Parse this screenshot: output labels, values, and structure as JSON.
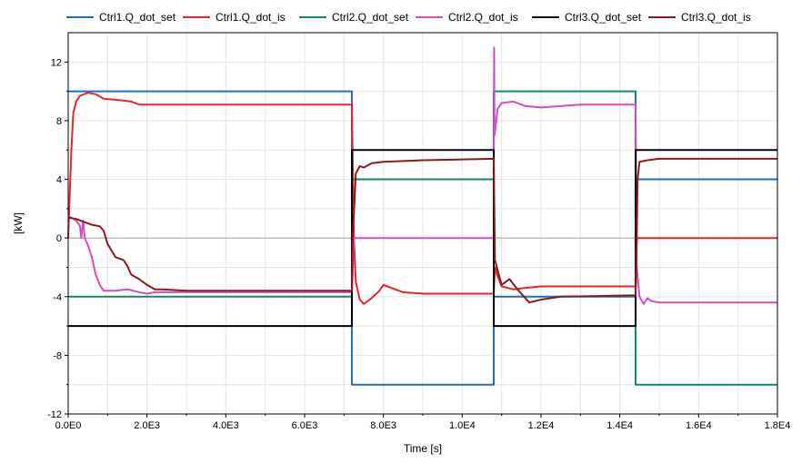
{
  "chart_data": {
    "type": "line",
    "xlabel": "Time [s]",
    "ylabel": "[kW]",
    "xlim": [
      0,
      18000
    ],
    "ylim": [
      -12,
      14
    ],
    "x_ticks": [
      {
        "value": 0,
        "label": "0.0E0"
      },
      {
        "value": 2000,
        "label": "2.0E3"
      },
      {
        "value": 4000,
        "label": "4.0E3"
      },
      {
        "value": 6000,
        "label": "6.0E3"
      },
      {
        "value": 8000,
        "label": "8.0E3"
      },
      {
        "value": 10000,
        "label": "1.0E4"
      },
      {
        "value": 12000,
        "label": "1.2E4"
      },
      {
        "value": 14000,
        "label": "1.4E4"
      },
      {
        "value": 16000,
        "label": "1.6E4"
      },
      {
        "value": 18000,
        "label": "1.8E4"
      }
    ],
    "y_ticks": [
      {
        "value": -12,
        "label": "-12"
      },
      {
        "value": -8,
        "label": "-8"
      },
      {
        "value": -4,
        "label": "-4"
      },
      {
        "value": 0,
        "label": "0"
      },
      {
        "value": 4,
        "label": "4"
      },
      {
        "value": 8,
        "label": "8"
      },
      {
        "value": 12,
        "label": "12"
      }
    ],
    "grid": true,
    "legend_position": "top",
    "series": [
      {
        "name": "Ctrl1.Q_dot_set",
        "color": "#1f6fb6",
        "points": [
          [
            0,
            10
          ],
          [
            7200,
            10
          ],
          [
            7200,
            -10
          ],
          [
            10800,
            -10
          ],
          [
            10800,
            -4
          ],
          [
            14400,
            -4
          ],
          [
            14400,
            4
          ],
          [
            18000,
            4
          ]
        ]
      },
      {
        "name": "Ctrl1.Q_dot_is",
        "color": "#e3262a",
        "points": [
          [
            0,
            0
          ],
          [
            40,
            3
          ],
          [
            80,
            6
          ],
          [
            130,
            8.5
          ],
          [
            200,
            9.3
          ],
          [
            300,
            9.7
          ],
          [
            500,
            9.9
          ],
          [
            700,
            9.8
          ],
          [
            900,
            9.5
          ],
          [
            1300,
            9.4
          ],
          [
            1600,
            9.3
          ],
          [
            1800,
            9.1
          ],
          [
            2200,
            9.1
          ],
          [
            7200,
            9.1
          ],
          [
            7250,
            0
          ],
          [
            7300,
            -3
          ],
          [
            7400,
            -4.2
          ],
          [
            7500,
            -4.5
          ],
          [
            7700,
            -4.1
          ],
          [
            7900,
            -3.6
          ],
          [
            8000,
            -3.2
          ],
          [
            8200,
            -3.4
          ],
          [
            8500,
            -3.7
          ],
          [
            9000,
            -3.8
          ],
          [
            10800,
            -3.8
          ],
          [
            10830,
            -2
          ],
          [
            10900,
            -2.6
          ],
          [
            11000,
            -3.3
          ],
          [
            11300,
            -3.5
          ],
          [
            11600,
            -3.4
          ],
          [
            12000,
            -3.3
          ],
          [
            14400,
            -3.3
          ],
          [
            14430,
            0
          ],
          [
            14500,
            0
          ],
          [
            18000,
            0
          ]
        ]
      },
      {
        "name": "Ctrl2.Q_dot_set",
        "color": "#138a5c",
        "points": [
          [
            0,
            -4
          ],
          [
            7200,
            -4
          ],
          [
            7200,
            4
          ],
          [
            10800,
            4
          ],
          [
            10800,
            10
          ],
          [
            14400,
            10
          ],
          [
            14400,
            -10
          ],
          [
            18000,
            -10
          ]
        ]
      },
      {
        "name": "Ctrl2.Q_dot_is",
        "color": "#d24cc6",
        "points": [
          [
            0,
            1.5
          ],
          [
            200,
            1.2
          ],
          [
            300,
            0.8
          ],
          [
            330,
            0
          ],
          [
            380,
            1.2
          ],
          [
            420,
            0
          ],
          [
            500,
            -0.5
          ],
          [
            600,
            -1.3
          ],
          [
            700,
            -2.5
          ],
          [
            800,
            -3.2
          ],
          [
            900,
            -3.6
          ],
          [
            1200,
            -3.6
          ],
          [
            1500,
            -3.5
          ],
          [
            1800,
            -3.7
          ],
          [
            2000,
            -3.8
          ],
          [
            2200,
            -3.7
          ],
          [
            7200,
            -3.7
          ],
          [
            7250,
            0
          ],
          [
            10800,
            0
          ],
          [
            10810,
            13
          ],
          [
            10820,
            7
          ],
          [
            10900,
            8.8
          ],
          [
            11000,
            9.2
          ],
          [
            11300,
            9.3
          ],
          [
            11600,
            9.0
          ],
          [
            12000,
            8.9
          ],
          [
            13000,
            9.1
          ],
          [
            14400,
            9.1
          ],
          [
            14430,
            -2
          ],
          [
            14500,
            -4
          ],
          [
            14600,
            -4.5
          ],
          [
            14700,
            -4.1
          ],
          [
            14800,
            -4.3
          ],
          [
            15000,
            -4.4
          ],
          [
            18000,
            -4.4
          ]
        ]
      },
      {
        "name": "Ctrl3.Q_dot_set",
        "color": "#000000",
        "points": [
          [
            0,
            -6
          ],
          [
            7200,
            -6
          ],
          [
            7200,
            6
          ],
          [
            10800,
            6
          ],
          [
            10800,
            -6
          ],
          [
            14400,
            -6
          ],
          [
            14400,
            6
          ],
          [
            18000,
            6
          ]
        ]
      },
      {
        "name": "Ctrl3.Q_dot_is",
        "color": "#8b1a1a",
        "points": [
          [
            0,
            1.4
          ],
          [
            200,
            1.3
          ],
          [
            400,
            1.1
          ],
          [
            600,
            0.9
          ],
          [
            800,
            0.8
          ],
          [
            900,
            0.5
          ],
          [
            1000,
            -0.4
          ],
          [
            1200,
            -1.3
          ],
          [
            1400,
            -1.5
          ],
          [
            1500,
            -1.9
          ],
          [
            1600,
            -2.5
          ],
          [
            1800,
            -2.8
          ],
          [
            2000,
            -3.2
          ],
          [
            2200,
            -3.5
          ],
          [
            2400,
            -3.5
          ],
          [
            3000,
            -3.6
          ],
          [
            7200,
            -3.6
          ],
          [
            7220,
            0
          ],
          [
            7300,
            4.4
          ],
          [
            7400,
            4.9
          ],
          [
            7500,
            4.8
          ],
          [
            7700,
            5.1
          ],
          [
            8000,
            5.2
          ],
          [
            9000,
            5.3
          ],
          [
            10800,
            5.4
          ],
          [
            10830,
            -1.5
          ],
          [
            10900,
            -2.2
          ],
          [
            11000,
            -3.2
          ],
          [
            11200,
            -2.8
          ],
          [
            11400,
            -3.5
          ],
          [
            11700,
            -4.4
          ],
          [
            12000,
            -4.2
          ],
          [
            12500,
            -4.0
          ],
          [
            14400,
            -3.9
          ],
          [
            14430,
            0
          ],
          [
            14450,
            4
          ],
          [
            14500,
            5.2
          ],
          [
            14700,
            5.3
          ],
          [
            15000,
            5.4
          ],
          [
            18000,
            5.4
          ]
        ]
      }
    ]
  }
}
